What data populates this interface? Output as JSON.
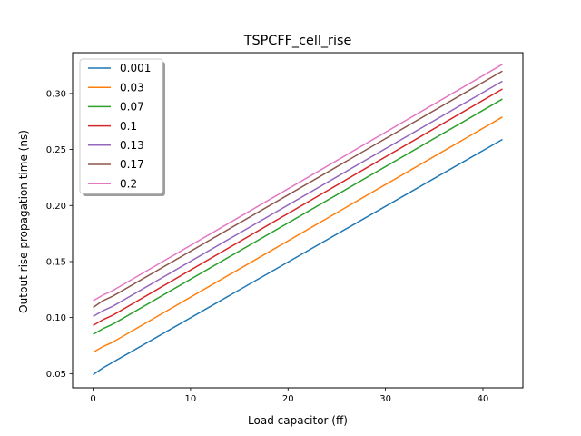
{
  "chart_data": {
    "type": "line",
    "title": "TSPCFF_cell_rise",
    "xlabel": "Load capacitor (ff)",
    "ylabel": "Output rise propagation time (ns)",
    "xlim": [
      -2.1,
      44.1
    ],
    "ylim": [
      0.0373,
      0.3364
    ],
    "xticks": [
      0,
      10,
      20,
      30,
      40
    ],
    "xtick_labels": [
      "0",
      "10",
      "20",
      "30",
      "40"
    ],
    "yticks": [
      0.05,
      0.1,
      0.15,
      0.2,
      0.25,
      0.3
    ],
    "ytick_labels": [
      "0.05",
      "0.10",
      "0.15",
      "0.20",
      "0.25",
      "0.30"
    ],
    "grid": false,
    "legend_position": "top-left",
    "x": [
      0,
      1,
      2,
      42
    ],
    "series": [
      {
        "name": "0.001",
        "color": "#1f77b4",
        "values": [
          0.049,
          0.055,
          0.06,
          0.259
        ]
      },
      {
        "name": "0.03",
        "color": "#ff7f0e",
        "values": [
          0.069,
          0.074,
          0.078,
          0.279
        ]
      },
      {
        "name": "0.07",
        "color": "#2ca02c",
        "values": [
          0.085,
          0.09,
          0.094,
          0.295
        ]
      },
      {
        "name": "0.1",
        "color": "#d62728",
        "values": [
          0.093,
          0.098,
          0.102,
          0.304
        ]
      },
      {
        "name": "0.13",
        "color": "#9467bd",
        "values": [
          0.101,
          0.106,
          0.11,
          0.311
        ]
      },
      {
        "name": "0.17",
        "color": "#8c564b",
        "values": [
          0.109,
          0.115,
          0.119,
          0.32
        ]
      },
      {
        "name": "0.2",
        "color": "#e377c2",
        "values": [
          0.115,
          0.12,
          0.124,
          0.326
        ]
      }
    ]
  }
}
